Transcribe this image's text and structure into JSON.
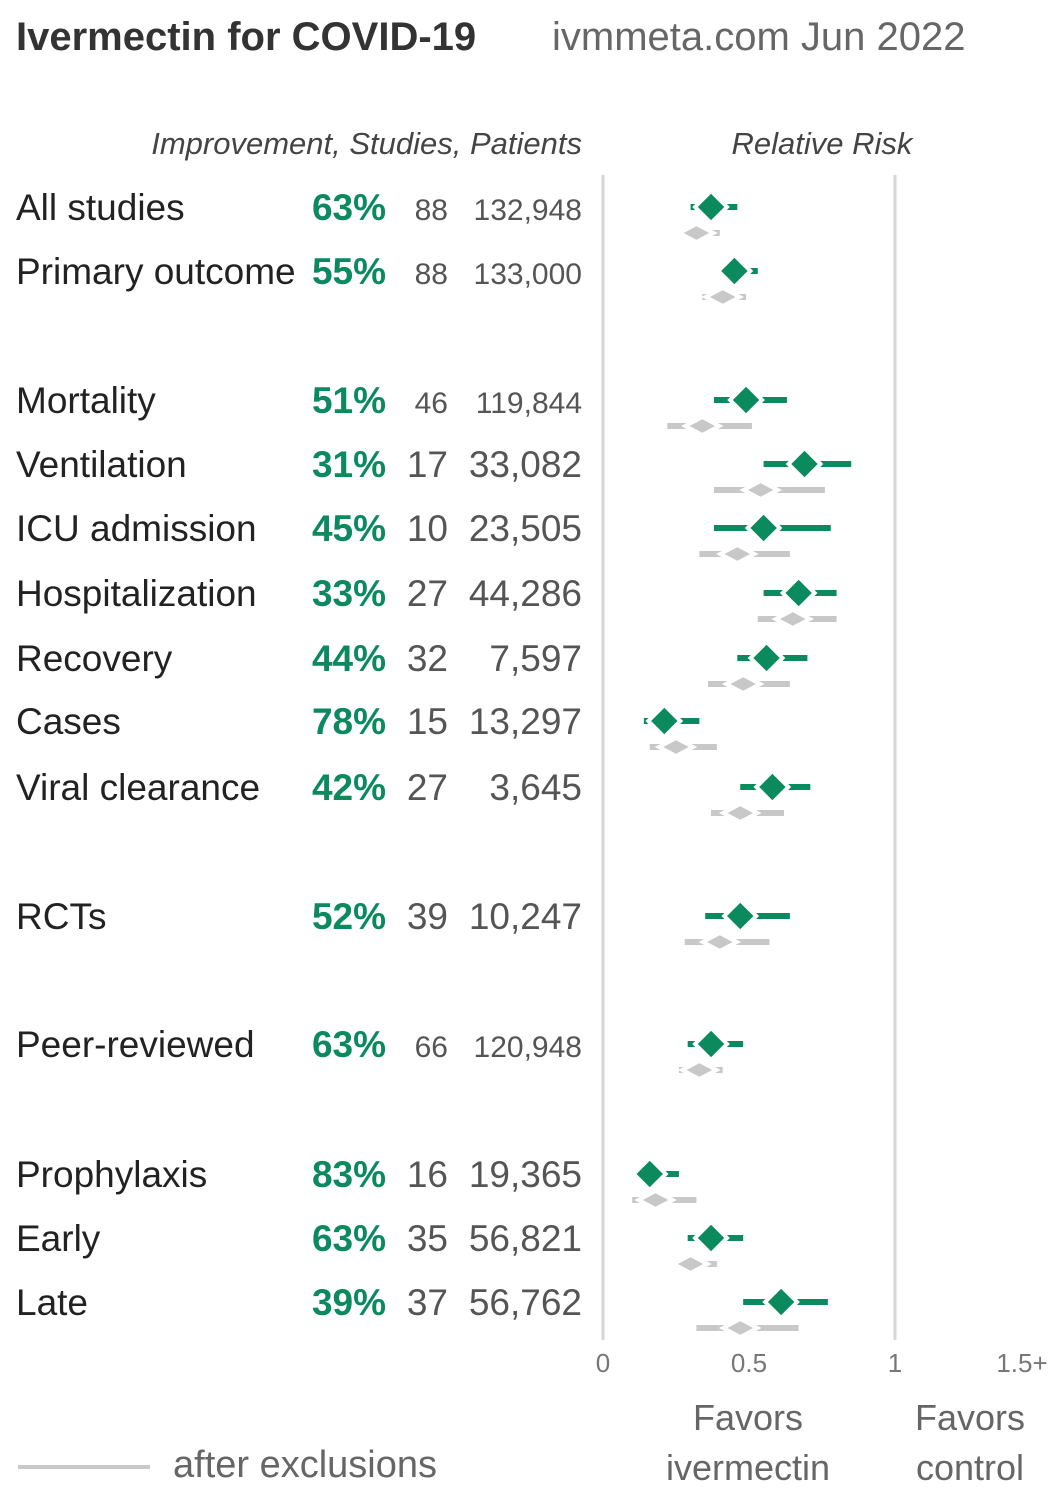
{
  "chart_data": {
    "type": "forest",
    "title": "Ivermectin for COVID-19",
    "subtitle": "ivmmeta.com Jun 2022",
    "column_header": "Improvement, Studies, Patients",
    "axis_title": "Relative Risk",
    "xlim": [
      0,
      1.5
    ],
    "x_ticks": [
      "0",
      "0.5",
      "1",
      "1.5+"
    ],
    "favors_left": [
      "Favors",
      "ivermectin"
    ],
    "favors_right": [
      "Favors",
      "control"
    ],
    "legend_label": "after exclusions",
    "colors": {
      "main": "#0b8a5e",
      "exclusions": "#c8c8c8",
      "axis": "#d6d6d6"
    },
    "rows": [
      {
        "label": "All studies",
        "improvement": "63%",
        "studies": "88",
        "patients": "132,948",
        "rr": 0.37,
        "lo": 0.3,
        "hi": 0.46,
        "ex_rr": 0.32,
        "ex_lo": 0.27,
        "ex_hi": 0.4,
        "small": true
      },
      {
        "label": "Primary outcome",
        "improvement": "55%",
        "studies": "88",
        "patients": "133,000",
        "rr": 0.45,
        "lo": 0.4,
        "hi": 0.53,
        "ex_rr": 0.41,
        "ex_lo": 0.34,
        "ex_hi": 0.49,
        "small": true
      },
      {
        "label": "Mortality",
        "improvement": "51%",
        "studies": "46",
        "patients": "119,844",
        "rr": 0.49,
        "lo": 0.38,
        "hi": 0.63,
        "ex_rr": 0.34,
        "ex_lo": 0.22,
        "ex_hi": 0.51,
        "small": true
      },
      {
        "label": "Ventilation",
        "improvement": "31%",
        "studies": "17",
        "patients": "33,082",
        "rr": 0.69,
        "lo": 0.55,
        "hi": 0.85,
        "ex_rr": 0.54,
        "ex_lo": 0.38,
        "ex_hi": 0.76
      },
      {
        "label": "ICU admission",
        "improvement": "45%",
        "studies": "10",
        "patients": "23,505",
        "rr": 0.55,
        "lo": 0.38,
        "hi": 0.78,
        "ex_rr": 0.46,
        "ex_lo": 0.33,
        "ex_hi": 0.64
      },
      {
        "label": "Hospitalization",
        "improvement": "33%",
        "studies": "27",
        "patients": "44,286",
        "rr": 0.67,
        "lo": 0.55,
        "hi": 0.8,
        "ex_rr": 0.65,
        "ex_lo": 0.53,
        "ex_hi": 0.8
      },
      {
        "label": "Recovery",
        "improvement": "44%",
        "studies": "32",
        "patients": "7,597",
        "rr": 0.56,
        "lo": 0.46,
        "hi": 0.7,
        "ex_rr": 0.48,
        "ex_lo": 0.36,
        "ex_hi": 0.64
      },
      {
        "label": "Cases",
        "improvement": "78%",
        "studies": "15",
        "patients": "13,297",
        "rr": 0.21,
        "lo": 0.14,
        "hi": 0.33,
        "ex_rr": 0.25,
        "ex_lo": 0.16,
        "ex_hi": 0.39
      },
      {
        "label": "Viral clearance",
        "improvement": "42%",
        "studies": "27",
        "patients": "3,645",
        "rr": 0.58,
        "lo": 0.47,
        "hi": 0.71,
        "ex_rr": 0.47,
        "ex_lo": 0.37,
        "ex_hi": 0.62
      },
      {
        "label": "RCTs",
        "improvement": "52%",
        "studies": "39",
        "patients": "10,247",
        "rr": 0.47,
        "lo": 0.35,
        "hi": 0.64,
        "ex_rr": 0.4,
        "ex_lo": 0.28,
        "ex_hi": 0.57
      },
      {
        "label": "Peer-reviewed",
        "improvement": "63%",
        "studies": "66",
        "patients": "120,948",
        "rr": 0.37,
        "lo": 0.29,
        "hi": 0.48,
        "ex_rr": 0.33,
        "ex_lo": 0.26,
        "ex_hi": 0.41,
        "small": true
      },
      {
        "label": "Prophylaxis",
        "improvement": "83%",
        "studies": "16",
        "patients": "19,365",
        "rr": 0.16,
        "lo": 0.11,
        "hi": 0.26,
        "ex_rr": 0.18,
        "ex_lo": 0.1,
        "ex_hi": 0.32
      },
      {
        "label": "Early",
        "improvement": "63%",
        "studies": "35",
        "patients": "56,821",
        "rr": 0.37,
        "lo": 0.29,
        "hi": 0.48,
        "ex_rr": 0.3,
        "ex_lo": 0.25,
        "ex_hi": 0.39
      },
      {
        "label": "Late",
        "improvement": "39%",
        "studies": "37",
        "patients": "56,762",
        "rr": 0.61,
        "lo": 0.48,
        "hi": 0.77,
        "ex_rr": 0.47,
        "ex_lo": 0.32,
        "ex_hi": 0.67
      }
    ]
  }
}
